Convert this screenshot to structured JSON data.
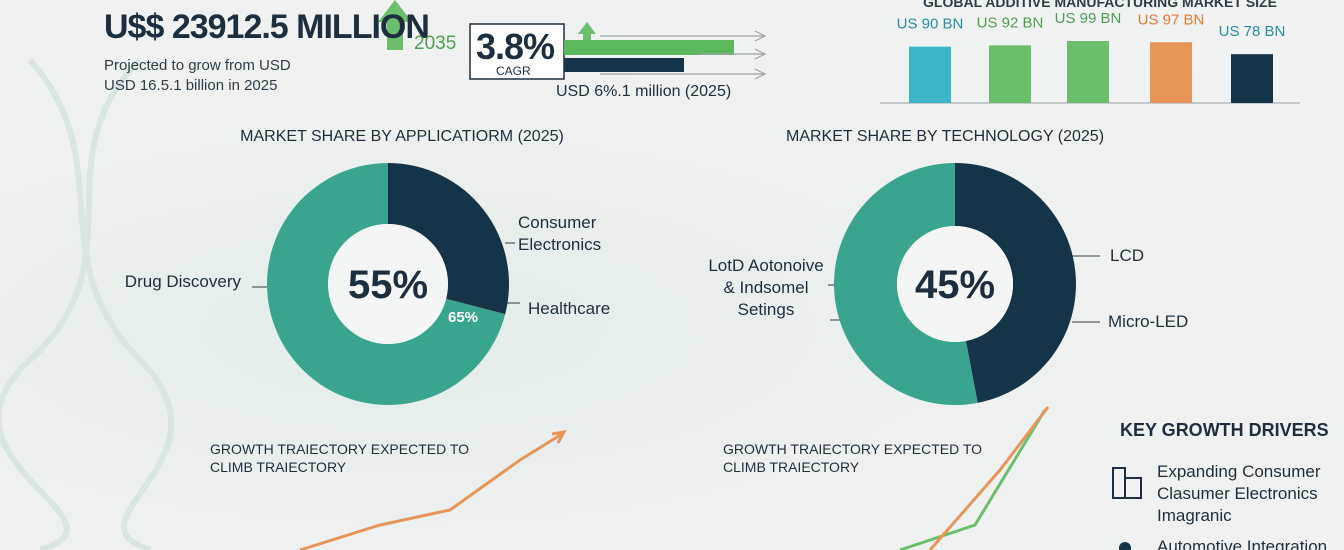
{
  "header": {
    "headline": "U$$ 23912.5 MILLION",
    "year": "2035",
    "subtitle_lines": [
      "Projected to grow from USD",
      "USD 16.5.1 billion in 2025"
    ]
  },
  "cagr": {
    "value": "3.8%",
    "label": "CAGR",
    "note": "USD 6%.1 million (2025)"
  },
  "chart_data": [
    {
      "type": "bar",
      "title": "GLOBAL ADDITIVE MANUFACTURING MARKET SIZE",
      "categories": [
        null,
        null,
        null,
        null,
        null
      ],
      "values": [
        90,
        92,
        99,
        97,
        78
      ],
      "value_labels": [
        "US 90 BN",
        "US 92 BN",
        "US 99 BN",
        "US 97 BN",
        "US 78 BN"
      ],
      "colors": [
        "#3cb6c6",
        "#6bbf6c",
        "#6bbf6c",
        "#e8955a",
        "#163447"
      ],
      "label_colors": [
        "#2a8e9c",
        "#4f9f52",
        "#4f9f52",
        "#e07b35",
        "#2a8e9c"
      ]
    },
    {
      "type": "pie",
      "donut": true,
      "title": "MARKET SHARE BY APPLICATIORM (2025)",
      "categories": [
        "Consumer Electronics",
        "Drug Discovery"
      ],
      "values": [
        29,
        71
      ],
      "colors": [
        "#163447",
        "#3aa58e"
      ],
      "center_label": "55%",
      "annotations": [
        "Healthcare",
        "65%"
      ]
    },
    {
      "type": "pie",
      "donut": true,
      "title": "MARKET SHARE BY TECHNOLOGY (2025)",
      "categories": [
        "LCD",
        "LotD Aotonoive & Indsomel Setings"
      ],
      "values": [
        47,
        53
      ],
      "colors": [
        "#163447",
        "#3aa58e"
      ],
      "center_label": "45%",
      "annotations": [
        "Micro-LED"
      ]
    }
  ],
  "growth_notes": [
    "GROWTH TRAIECTORY EXPECTED TO CLIMB TRAIECTORY",
    "GROWTH TRAIECTORY EXPECTED TO CLIMB TRAIECTORY"
  ],
  "drivers": {
    "title": "KEY GROWTH DRIVERS",
    "items": [
      "Expanding Consumer Clasumer Electronics Imagranic",
      "Automotive Integration"
    ]
  }
}
